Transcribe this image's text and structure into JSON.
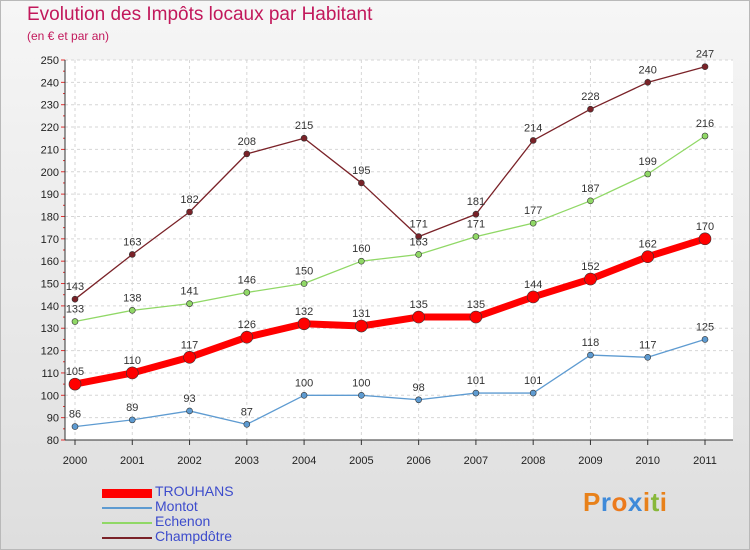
{
  "chart_data": {
    "type": "line",
    "title": "Evolution des Impôts locaux par Habitant",
    "subtitle": "(en € et par an)",
    "x": [
      "2000",
      "2001",
      "2002",
      "2003",
      "2004",
      "2005",
      "2006",
      "2007",
      "2008",
      "2009",
      "2010",
      "2011"
    ],
    "ylim": [
      80,
      250
    ],
    "yticks": [
      80,
      90,
      100,
      110,
      120,
      130,
      140,
      150,
      160,
      170,
      180,
      190,
      200,
      210,
      220,
      230,
      240,
      250
    ],
    "grid": true,
    "legend_position": "bottom-left",
    "series": [
      {
        "name": "TROUHANS",
        "color": "#ff0000",
        "values": [
          105,
          110,
          117,
          126,
          132,
          131,
          135,
          135,
          144,
          152,
          162,
          170
        ]
      },
      {
        "name": "Montot",
        "color": "#5e9bd1",
        "values": [
          86,
          89,
          93,
          87,
          100,
          100,
          98,
          101,
          101,
          118,
          117,
          125
        ]
      },
      {
        "name": "Echenon",
        "color": "#90d866",
        "values": [
          133,
          138,
          141,
          146,
          150,
          160,
          163,
          171,
          177,
          187,
          199,
          216
        ]
      },
      {
        "name": "Champdôtre",
        "color": "#7a2228",
        "values": [
          143,
          163,
          182,
          208,
          215,
          195,
          171,
          181,
          214,
          228,
          240,
          247
        ]
      }
    ]
  },
  "logo": {
    "text": "Proxiti",
    "colors": [
      "#e8811a",
      "#3f8ad9",
      "#ec7a1c",
      "#3f8ad9",
      "#e8811a",
      "#88b83a",
      "#e8811a"
    ]
  }
}
